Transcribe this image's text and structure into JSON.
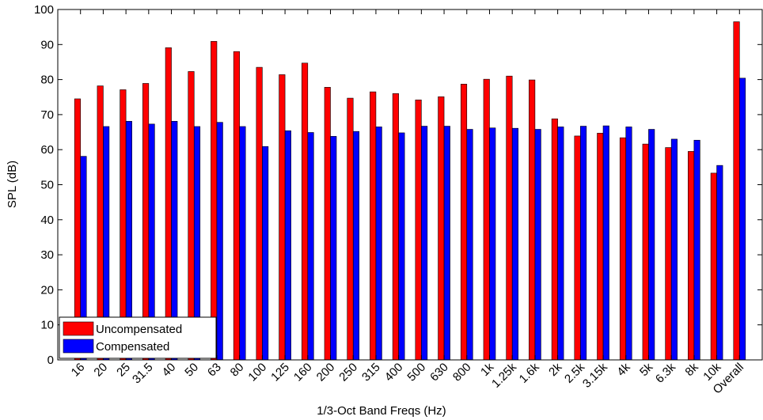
{
  "chart_data": {
    "type": "bar",
    "xlabel": "1/3-Oct Band Freqs (Hz)",
    "ylabel": "SPL (dB)",
    "categories": [
      "16",
      "20",
      "25",
      "31.5",
      "40",
      "50",
      "63",
      "80",
      "100",
      "125",
      "160",
      "200",
      "250",
      "315",
      "400",
      "500",
      "630",
      "800",
      "1k",
      "1.25k",
      "1.6k",
      "2k",
      "2.5k",
      "3.15k",
      "4k",
      "5k",
      "6.3k",
      "8k",
      "10k",
      "Overall"
    ],
    "series": [
      {
        "name": "Uncompensated",
        "color": "#ff0000",
        "values": [
          74.5,
          78.2,
          77.1,
          78.9,
          89.1,
          82.3,
          90.9,
          88.0,
          83.5,
          81.4,
          84.7,
          77.8,
          74.7,
          76.5,
          76.0,
          74.2,
          75.1,
          78.7,
          80.1,
          81.0,
          79.9,
          68.8,
          63.9,
          64.7,
          63.4,
          61.6,
          60.6,
          59.5,
          53.3,
          96.5
        ]
      },
      {
        "name": "Compensated",
        "color": "#0000ff",
        "values": [
          58.1,
          66.6,
          68.1,
          67.3,
          68.1,
          66.6,
          67.8,
          66.6,
          60.9,
          65.4,
          64.9,
          63.8,
          65.2,
          66.5,
          64.8,
          66.7,
          66.7,
          65.8,
          66.2,
          66.1,
          65.8,
          66.5,
          66.7,
          66.8,
          66.5,
          65.8,
          63.0,
          62.7,
          55.5,
          80.4
        ]
      }
    ],
    "ylim": [
      0,
      100
    ],
    "yticks": [
      0,
      10,
      20,
      30,
      40,
      50,
      60,
      70,
      80,
      90,
      100
    ],
    "grid": false,
    "legend": "southwest"
  }
}
